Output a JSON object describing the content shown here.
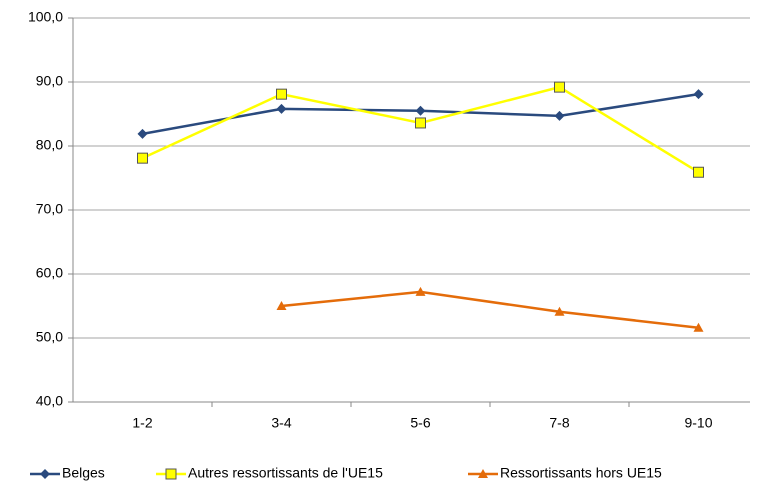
{
  "chart_data": {
    "type": "line",
    "categories": [
      "1-2",
      "3-4",
      "5-6",
      "7-8",
      "9-10"
    ],
    "series": [
      {
        "name": "Belges",
        "color": "#2a4a7e",
        "marker": "diamond",
        "values": [
          81.9,
          85.8,
          85.5,
          84.7,
          88.1
        ]
      },
      {
        "name": "Autres ressortissants de l'UE15",
        "color": "#ffff00",
        "marker": "square",
        "values": [
          78.1,
          88.1,
          83.6,
          89.2,
          75.9
        ]
      },
      {
        "name": "Ressortissants hors UE15",
        "color": "#e46c0a",
        "marker": "triangle",
        "values": [
          null,
          55.0,
          57.2,
          54.1,
          51.6
        ]
      }
    ],
    "ylim": [
      40,
      100
    ],
    "yticks": [
      {
        "value": 40,
        "label": "40,0"
      },
      {
        "value": 50,
        "label": "50,0"
      },
      {
        "value": 60,
        "label": "60,0"
      },
      {
        "value": 70,
        "label": "70,0"
      },
      {
        "value": 80,
        "label": "80,0"
      },
      {
        "value": 90,
        "label": "90,0"
      },
      {
        "value": 100,
        "label": "100,0"
      }
    ],
    "grid": true,
    "legend": "bottom"
  }
}
